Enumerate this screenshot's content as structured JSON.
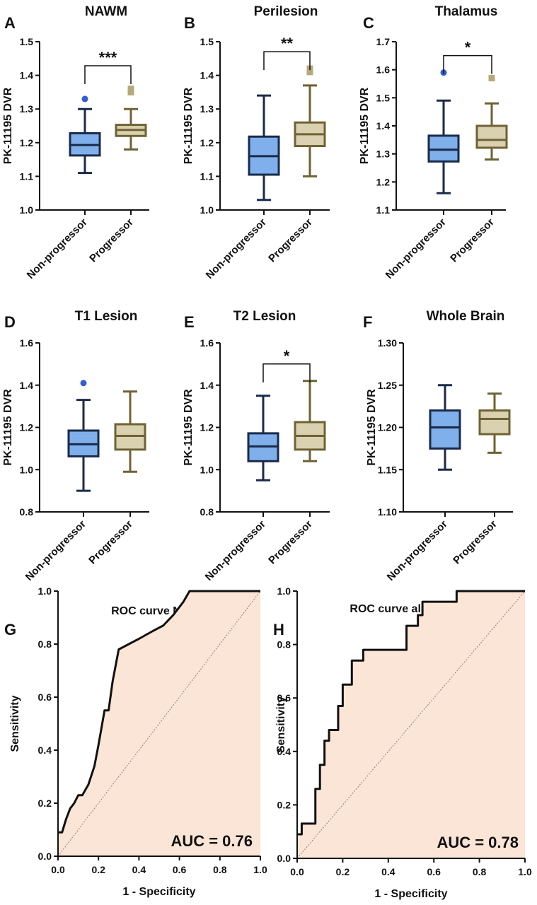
{
  "colors": {
    "nonprogressor_fill": "#7fb0ec",
    "progressor_fill": "#d9d1b0",
    "nonprogressor_stroke": "#1a2a4a",
    "progressor_stroke": "#6f6233",
    "nonprogressor_outlier": "#2f5fd0",
    "progressor_outlier": "#b5a97a",
    "roc_area": "#fbe5d6",
    "axis": "#111111"
  },
  "chart_data": [
    {
      "panel": "A",
      "type": "box",
      "title": "NAWM",
      "ylabel": "PK-11195 DVR",
      "ylim": [
        1.0,
        1.5
      ],
      "ticks": [
        "1.0",
        "1.1",
        "1.2",
        "1.3",
        "1.4",
        "1.5"
      ],
      "categories": [
        "Non-progressor",
        "Progressor"
      ],
      "boxes": [
        {
          "min": 1.11,
          "q1": 1.162,
          "median": 1.193,
          "q3": 1.228,
          "max": 1.3,
          "outliers": [
            1.33
          ]
        },
        {
          "min": 1.18,
          "q1": 1.22,
          "median": 1.238,
          "q3": 1.253,
          "max": 1.3,
          "outliers": [
            1.35,
            1.36
          ]
        }
      ],
      "significance": "***"
    },
    {
      "panel": "B",
      "type": "box",
      "title": "Perilesion",
      "ylabel": "PK-11195 DVR",
      "ylim": [
        1.0,
        1.5
      ],
      "ticks": [
        "1.0",
        "1.1",
        "1.2",
        "1.3",
        "1.4",
        "1.5"
      ],
      "categories": [
        "Non-progressor",
        "Progressor"
      ],
      "boxes": [
        {
          "min": 1.03,
          "q1": 1.105,
          "median": 1.16,
          "q3": 1.218,
          "max": 1.34,
          "outliers": []
        },
        {
          "min": 1.1,
          "q1": 1.19,
          "median": 1.225,
          "q3": 1.26,
          "max": 1.37,
          "outliers": [
            1.41,
            1.42
          ]
        }
      ],
      "significance": "**"
    },
    {
      "panel": "C",
      "type": "box",
      "title": "Thalamus",
      "ylabel": "PK-11195 DVR",
      "ylim": [
        1.1,
        1.7
      ],
      "ticks": [
        "1.1",
        "1.2",
        "1.3",
        "1.4",
        "1.5",
        "1.6",
        "1.7"
      ],
      "categories": [
        "Non-progressor",
        "Progressor"
      ],
      "boxes": [
        {
          "min": 1.16,
          "q1": 1.273,
          "median": 1.315,
          "q3": 1.365,
          "max": 1.49,
          "outliers": [
            1.59
          ]
        },
        {
          "min": 1.28,
          "q1": 1.322,
          "median": 1.35,
          "q3": 1.4,
          "max": 1.48,
          "outliers": [
            1.57
          ]
        }
      ],
      "significance": "*"
    },
    {
      "panel": "D",
      "type": "box",
      "title": "T1 Lesion",
      "ylabel": "PK-11195 DVR",
      "ylim": [
        0.8,
        1.6
      ],
      "ticks": [
        "0.8",
        "1.0",
        "1.2",
        "1.4",
        "1.6"
      ],
      "categories": [
        "Non-progressor",
        "Progressor"
      ],
      "boxes": [
        {
          "min": 0.9,
          "q1": 1.063,
          "median": 1.12,
          "q3": 1.185,
          "max": 1.33,
          "outliers": [
            1.41
          ]
        },
        {
          "min": 0.99,
          "q1": 1.095,
          "median": 1.16,
          "q3": 1.215,
          "max": 1.37,
          "outliers": []
        }
      ],
      "significance": ""
    },
    {
      "panel": "E",
      "type": "box",
      "title": "T2 Lesion",
      "ylabel": "PK-11195 DVR",
      "ylim": [
        0.8,
        1.6
      ],
      "ticks": [
        "0.8",
        "1.0",
        "1.2",
        "1.4",
        "1.6"
      ],
      "categories": [
        "Non-progressor",
        "Progressor"
      ],
      "boxes": [
        {
          "min": 0.95,
          "q1": 1.04,
          "median": 1.11,
          "q3": 1.172,
          "max": 1.35,
          "outliers": []
        },
        {
          "min": 1.04,
          "q1": 1.095,
          "median": 1.16,
          "q3": 1.225,
          "max": 1.42,
          "outliers": []
        }
      ],
      "significance": "*"
    },
    {
      "panel": "F",
      "type": "box",
      "title": "Whole Brain",
      "ylabel": "PK-11195 DVR",
      "ylim": [
        1.1,
        1.3
      ],
      "ticks": [
        "1.10",
        "1.15",
        "1.20",
        "1.25",
        "1.30"
      ],
      "categories": [
        "Non-progressor",
        "Progressor"
      ],
      "boxes": [
        {
          "min": 1.15,
          "q1": 1.175,
          "median": 1.2,
          "q3": 1.22,
          "max": 1.25,
          "outliers": []
        },
        {
          "min": 1.17,
          "q1": 1.192,
          "median": 1.21,
          "q3": 1.22,
          "max": 1.24,
          "outliers": []
        }
      ],
      "significance": ""
    },
    {
      "panel": "G",
      "type": "line",
      "title": "ROC curve NAWM",
      "xlabel": "1 - Specificity",
      "ylabel": "Sensitivity",
      "xlim": [
        0,
        1
      ],
      "ylim": [
        0,
        1
      ],
      "ticks": [
        "0.0",
        "0.2",
        "0.4",
        "0.6",
        "0.8",
        "1.0"
      ],
      "auc_label": "AUC = 0.76",
      "x": [
        0,
        0.02,
        0.04,
        0.06,
        0.08,
        0.1,
        0.12,
        0.15,
        0.18,
        0.2,
        0.23,
        0.25,
        0.27,
        0.3,
        0.35,
        0.4,
        0.47,
        0.52,
        0.57,
        0.62,
        0.65,
        1.0
      ],
      "y": [
        0.09,
        0.09,
        0.14,
        0.18,
        0.2,
        0.23,
        0.23,
        0.27,
        0.34,
        0.42,
        0.55,
        0.55,
        0.66,
        0.78,
        0.8,
        0.82,
        0.85,
        0.87,
        0.91,
        0.96,
        1.0,
        1.0
      ]
    },
    {
      "panel": "H",
      "type": "line",
      "title": "ROC curve all regions",
      "xlabel": "1 - Specificity",
      "ylabel": "Sensitivity",
      "xlim": [
        0,
        1
      ],
      "ylim": [
        0,
        1
      ],
      "ticks": [
        "0.0",
        "0.2",
        "0.4",
        "0.6",
        "0.8",
        "1.0"
      ],
      "auc_label": "AUC = 0.78",
      "x": [
        0,
        0.02,
        0.02,
        0.08,
        0.08,
        0.1,
        0.1,
        0.12,
        0.12,
        0.14,
        0.14,
        0.18,
        0.18,
        0.2,
        0.2,
        0.24,
        0.24,
        0.29,
        0.29,
        0.48,
        0.48,
        0.53,
        0.53,
        0.55,
        0.55,
        0.7,
        0.7,
        1.0
      ],
      "y": [
        0.09,
        0.09,
        0.13,
        0.13,
        0.26,
        0.26,
        0.35,
        0.35,
        0.44,
        0.44,
        0.48,
        0.48,
        0.57,
        0.57,
        0.65,
        0.65,
        0.74,
        0.74,
        0.78,
        0.78,
        0.87,
        0.87,
        0.91,
        0.91,
        0.96,
        0.96,
        1.0,
        1.0
      ]
    }
  ]
}
